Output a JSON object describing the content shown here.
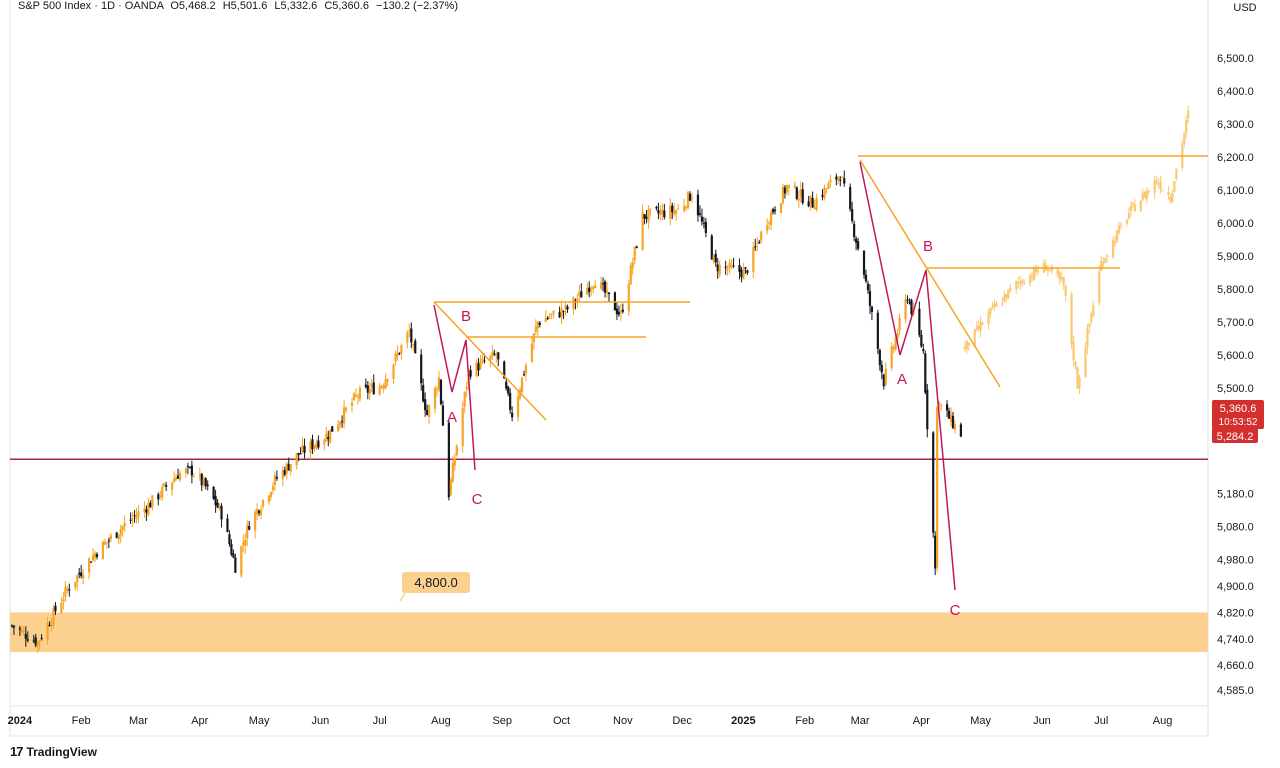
{
  "header": {
    "title": "S&P 500 Index · 1D · OANDA",
    "open": "O5,468.2",
    "high": "H5,501.6",
    "low": "L5,332.6",
    "close": "C5,360.6",
    "change": "−130.2 (−2.37%)"
  },
  "currency": "USD",
  "price_badge": {
    "price": "5,360.6",
    "timer": "10:53:52",
    "level": "5,284.2"
  },
  "zone_label": "4,800.0",
  "brand": "TradingView",
  "colors": {
    "bull": "#f7a325",
    "bear": "#131722",
    "projection": "#fbc770",
    "trend": "#f7a325",
    "wave": "#c2185b",
    "support_line": "#9e2b3b",
    "zone": "#fcd08f",
    "badge_red": "#d32f2f"
  },
  "chart_data": {
    "type": "line",
    "title": "",
    "series": [
      {
        "name": "",
        "x": [
          "2023-12-28",
          "2024-01-10",
          "2024-01-25",
          "2024-02-08",
          "2024-02-22",
          "2024-03-07",
          "2024-03-21",
          "2024-03-28",
          "2024-04-04",
          "2024-04-12",
          "2024-04-19",
          "2024-04-26",
          "2024-05-09",
          "2024-05-21",
          "2024-06-05",
          "2024-06-20",
          "2024-07-02",
          "2024-07-16",
          "2024-07-25",
          "2024-07-31",
          "2024-08-05",
          "2024-08-15",
          "2024-08-29",
          "2024-09-06",
          "2024-09-19",
          "2024-10-04",
          "2024-10-18",
          "2024-10-31",
          "2024-11-11",
          "2024-11-29",
          "2024-12-06",
          "2024-12-18",
          "2025-01-02",
          "2025-01-13",
          "2025-01-23",
          "2025-02-05",
          "2025-02-19",
          "2025-03-03",
          "2025-03-13",
          "2025-03-25",
          "2025-04-02",
          "2025-04-08",
          "2025-04-09",
          "2025-04-21"
        ],
        "values": [
          4780,
          4730,
          4890,
          5000,
          5080,
          5150,
          5240,
          5250,
          5200,
          5120,
          4960,
          5090,
          5220,
          5300,
          5360,
          5480,
          5510,
          5670,
          5420,
          5530,
          5180,
          5550,
          5600,
          5420,
          5700,
          5740,
          5830,
          5720,
          6020,
          6040,
          6090,
          5870,
          5850,
          6010,
          6110,
          6060,
          6150,
          5850,
          5520,
          5780,
          5610,
          4950,
          5460,
          5360
        ]
      },
      {
        "name": "",
        "x": [
          "2025-04-23",
          "2025-05-06",
          "2025-05-20",
          "2025-06-03",
          "2025-06-12",
          "2025-06-19",
          "2025-07-01",
          "2025-07-15",
          "2025-07-29",
          "2025-08-05",
          "2025-08-14"
        ],
        "values": [
          5620,
          5730,
          5820,
          5870,
          5810,
          5510,
          5880,
          6030,
          6130,
          6080,
          6330
        ]
      }
    ],
    "y_ticks": [
      "6,500.0",
      "6,400.0",
      "6,300.0",
      "6,200.0",
      "6,100.0",
      "6,000.0",
      "5,900.0",
      "5,800.0",
      "5,700.0",
      "5,600.0",
      "5,500.0",
      "5,380.0",
      "5,180.0",
      "5,080.0",
      "4,980.0",
      "4,900.0",
      "4,820.0",
      "4,740.0",
      "4,660.0",
      "4,585.0"
    ],
    "x_ticks": [
      "2024",
      "Feb",
      "Mar",
      "Apr",
      "May",
      "Jun",
      "Jul",
      "Aug",
      "Sep",
      "Oct",
      "Nov",
      "Dec",
      "2025",
      "Feb",
      "Mar",
      "Apr",
      "May",
      "Jun",
      "Jul",
      "Aug"
    ],
    "ylim": [
      4550,
      6600
    ],
    "xlim": [
      "2023-12-27",
      "2025-08-24"
    ],
    "annotations": {
      "horizontal_lines": [
        5284.2
      ],
      "zone": [
        4700,
        4820
      ],
      "wave_labels": [
        "A",
        "B",
        "C",
        "A",
        "B",
        "C"
      ]
    }
  }
}
